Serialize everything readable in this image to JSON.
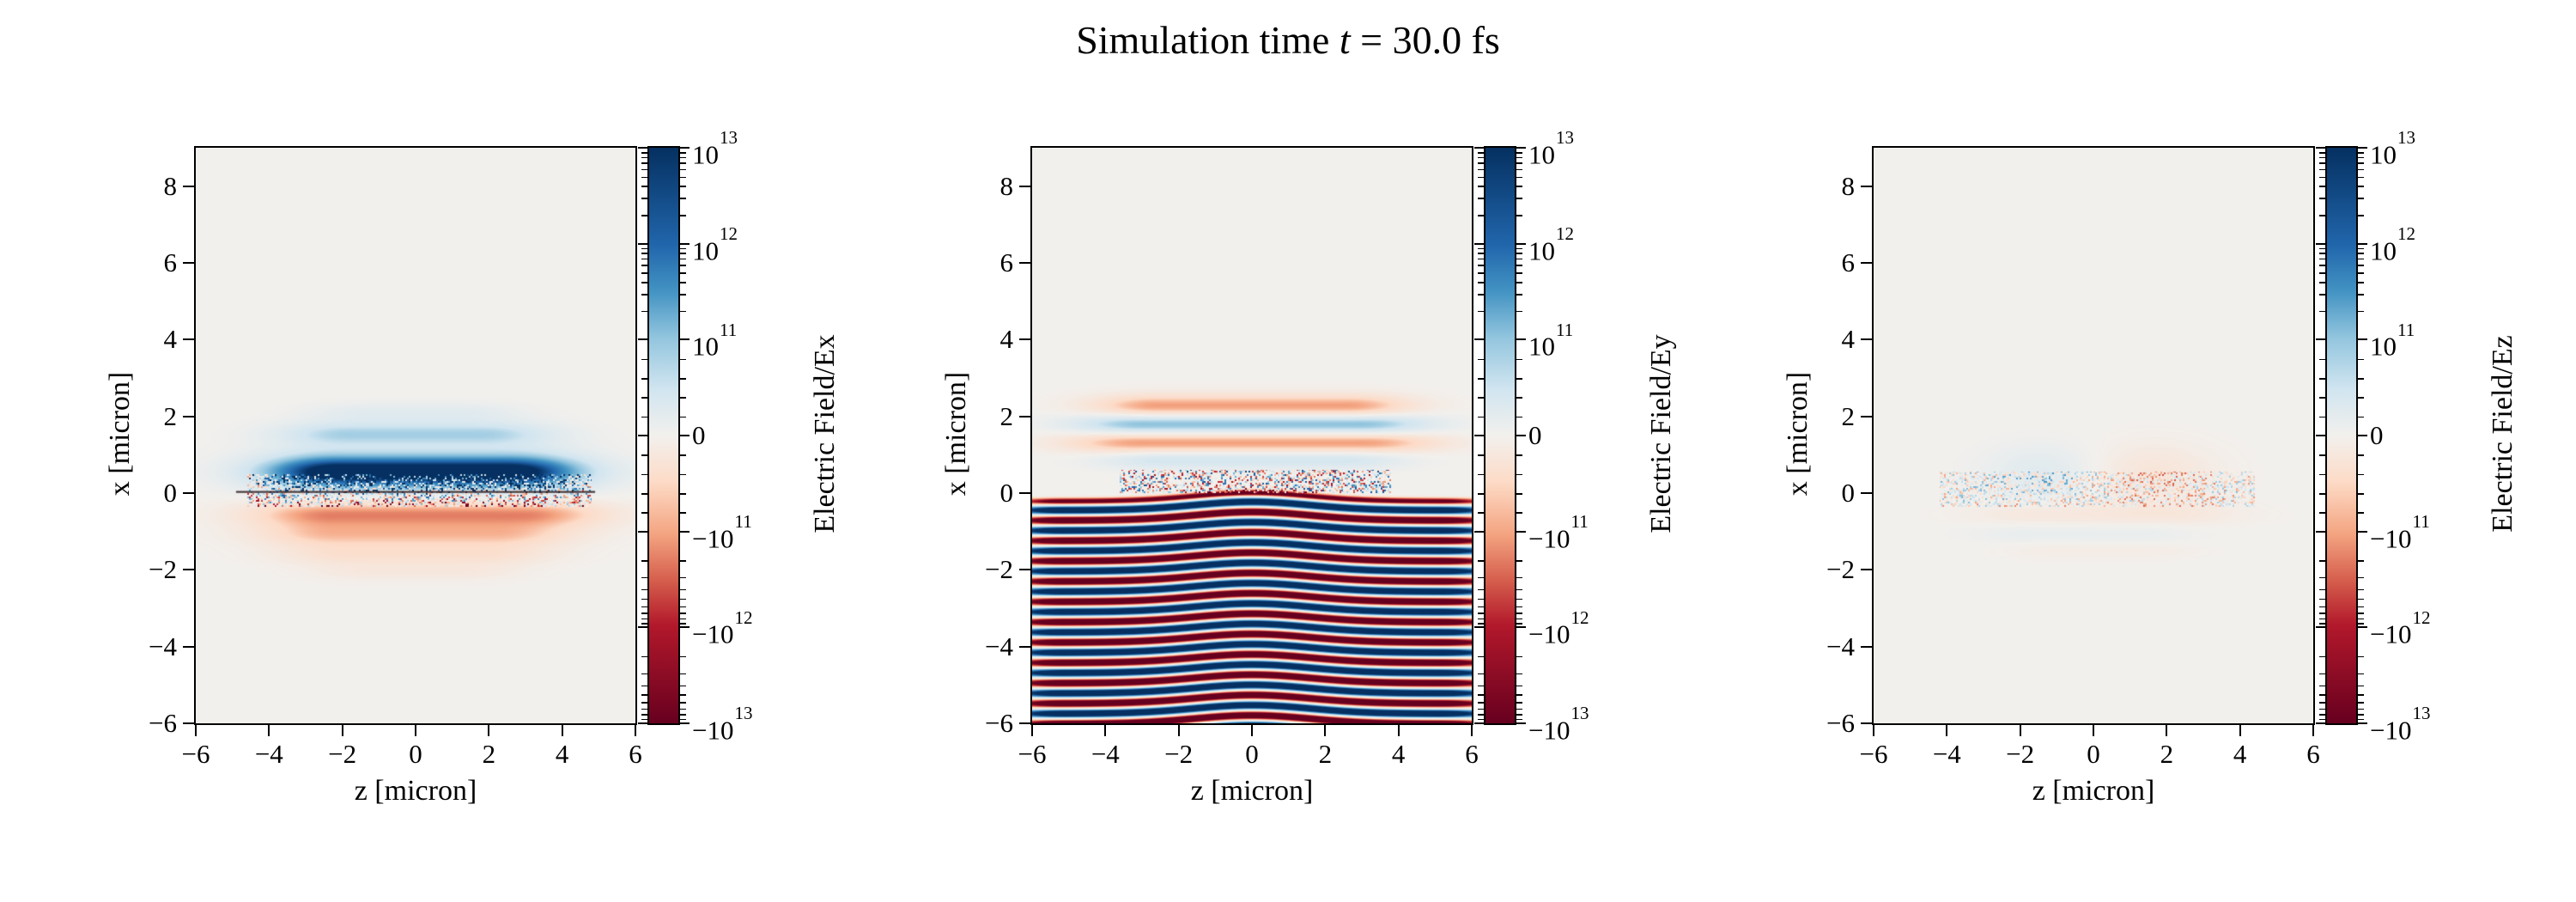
{
  "figure": {
    "title_prefix": "Simulation time ",
    "title_var": "t",
    "title_rest": " = 30.0 fs",
    "background": "#ffffff"
  },
  "colormap": {
    "name": "RdBu",
    "zero_color": "#f2f0ed",
    "stops": [
      {
        "t": -1.0,
        "color": "#67001f"
      },
      {
        "t": -0.83,
        "color": "#b2182b"
      },
      {
        "t": -0.67,
        "color": "#d6604d"
      },
      {
        "t": -0.5,
        "color": "#f4a582"
      },
      {
        "t": -0.33,
        "color": "#fddbc7"
      },
      {
        "t": 0.0,
        "color": "#f2f0ed"
      },
      {
        "t": 0.33,
        "color": "#d1e5f0"
      },
      {
        "t": 0.5,
        "color": "#92c5de"
      },
      {
        "t": 0.67,
        "color": "#4393c3"
      },
      {
        "t": 0.83,
        "color": "#2166ac"
      },
      {
        "t": 1.0,
        "color": "#053061"
      }
    ]
  },
  "colorbar": {
    "scale": "symlog",
    "tick_labels": [
      {
        "sign": "",
        "base": "10",
        "exp": "13"
      },
      {
        "sign": "",
        "base": "10",
        "exp": "12"
      },
      {
        "sign": "",
        "base": "10",
        "exp": "11"
      },
      {
        "label": "0"
      },
      {
        "sign": "−",
        "base": "10",
        "exp": "11"
      },
      {
        "sign": "−",
        "base": "10",
        "exp": "12"
      },
      {
        "sign": "−",
        "base": "10",
        "exp": "13"
      }
    ]
  },
  "chart_data": [
    {
      "type": "heatmap",
      "field": "Ex",
      "xlabel": "z [micron]",
      "ylabel": "x [micron]",
      "colorbar_label": "Electric Field/Ex",
      "xlim": [
        -6,
        6
      ],
      "ylim": [
        -6,
        9
      ],
      "xticks": [
        -6,
        -4,
        -2,
        0,
        2,
        4,
        6
      ],
      "yticks": [
        8,
        6,
        4,
        2,
        0,
        -2,
        -4,
        -6
      ],
      "clim": [
        -10000000000000.0,
        10000000000000.0
      ],
      "description": "Strong positive (blue) horizontal band just above the plasma surface x≈0 spanning z≈−4…4, weaker positive bands near x≈1.5 and 2.1, negative (orange-red) bands at x≈−0.5, −1.1, −1.6, −2, thin dark speckled interface line along x≈0.",
      "features": [
        {
          "type": "band",
          "x0": 0.55,
          "sx": 0.3,
          "z0": 0.2,
          "zflat": 2.2,
          "sz": 1.6,
          "amp": 0.95
        },
        {
          "type": "band",
          "x0": 0.6,
          "sx": 0.55,
          "z0": 0.2,
          "zflat": 2.6,
          "sz": 1.4,
          "amp": 0.22
        },
        {
          "type": "band",
          "x0": 1.55,
          "sx": 0.22,
          "z0": 0.0,
          "zflat": 1.8,
          "sz": 1.4,
          "amp": 0.4
        },
        {
          "type": "band",
          "x0": 2.1,
          "sx": 0.18,
          "z0": 0.0,
          "zflat": 1.2,
          "sz": 1.2,
          "amp": 0.16
        },
        {
          "type": "band",
          "x0": -0.55,
          "sx": 0.26,
          "z0": 0.3,
          "zflat": 2.6,
          "sz": 1.6,
          "amp": -0.6
        },
        {
          "type": "band",
          "x0": -1.1,
          "sx": 0.22,
          "z0": 0.0,
          "zflat": 2.2,
          "sz": 1.5,
          "amp": -0.38
        },
        {
          "type": "band",
          "x0": -1.6,
          "sx": 0.2,
          "z0": 0.0,
          "zflat": 1.8,
          "sz": 1.4,
          "amp": -0.24
        },
        {
          "type": "band",
          "x0": -2.05,
          "sx": 0.17,
          "z0": 0.0,
          "zflat": 1.2,
          "sz": 1.2,
          "amp": -0.12
        },
        {
          "type": "speckle",
          "x0": -0.35,
          "x1": 0.5,
          "z0": -4.6,
          "z1": 4.8,
          "amp": 0.85
        },
        {
          "type": "darkline",
          "x0": 0.03,
          "z0": -4.9,
          "z1": 4.9
        }
      ]
    },
    {
      "type": "heatmap",
      "field": "Ey",
      "xlabel": "z [micron]",
      "ylabel": "x [micron]",
      "colorbar_label": "Electric Field/Ey",
      "xlim": [
        -6,
        6
      ],
      "ylim": [
        -6,
        9
      ],
      "xticks": [
        -6,
        -4,
        -2,
        0,
        2,
        4,
        6
      ],
      "yticks": [
        8,
        6,
        4,
        2,
        0,
        -2,
        -4,
        -6
      ],
      "clim": [
        -10000000000000.0,
        10000000000000.0
      ],
      "description": "Saturated alternating red/blue horizontal laser wavefronts (period ≈0.53 micron) filling the region from x≈0 down to x=−6 across z≈−6…6, bowing slightly upward near z=0; weaker alternating bands at x≈0.9–2.3 above the surface and speckle along the interface.",
      "features": [
        {
          "type": "band",
          "x0": 2.25,
          "sx": 0.22,
          "z0": 0.0,
          "zflat": 2.6,
          "sz": 1.3,
          "amp": -0.55
        },
        {
          "type": "band",
          "x0": 1.8,
          "sx": 0.2,
          "z0": 0.0,
          "zflat": 2.9,
          "sz": 1.4,
          "amp": 0.6
        },
        {
          "type": "band",
          "x0": 1.32,
          "sx": 0.2,
          "z0": 0.0,
          "zflat": 3.0,
          "sz": 1.5,
          "amp": -0.55
        },
        {
          "type": "band",
          "x0": 0.88,
          "sx": 0.17,
          "z0": 0.0,
          "zflat": 2.4,
          "sz": 1.3,
          "amp": 0.32
        },
        {
          "type": "speckle",
          "x0": 0.0,
          "x1": 0.6,
          "z0": -3.6,
          "z1": 3.8,
          "amp": 0.9
        },
        {
          "type": "stripes",
          "xtop": -0.05,
          "period": 0.53,
          "amp": -1.35,
          "z0": 0.0,
          "zflat": 5.1,
          "sz": 1.1,
          "bow": 0.22,
          "bowsz": 1.6
        }
      ]
    },
    {
      "type": "heatmap",
      "field": "Ez",
      "xlabel": "z [micron]",
      "ylabel": "x [micron]",
      "colorbar_label": "Electric Field/Ez",
      "xlim": [
        -6,
        6
      ],
      "ylim": [
        -6,
        9
      ],
      "xticks": [
        -6,
        -4,
        -2,
        0,
        2,
        4,
        6
      ],
      "yticks": [
        8,
        6,
        4,
        2,
        0,
        -2,
        -4,
        -6
      ],
      "clim": [
        -10000000000000.0,
        10000000000000.0
      ],
      "description": "Mostly near-zero field: faint speckle noise along the plasma surface x≈0 (z≈−4…4), a faint positive (light blue) patch near z≈−1.4 and a faint negative (light orange) patch near z≈1.6, very weak bands just below the surface.",
      "features": [
        {
          "type": "speckle",
          "x0": -0.35,
          "x1": 0.55,
          "z0": -4.2,
          "z1": 4.4,
          "amp": 0.55
        },
        {
          "type": "blob",
          "x0": 0.55,
          "sx": 0.5,
          "z0": -1.4,
          "sz": 1.1,
          "amp": 0.18
        },
        {
          "type": "blob",
          "x0": 0.5,
          "sx": 0.55,
          "z0": 1.6,
          "sz": 1.2,
          "amp": -0.18
        },
        {
          "type": "band",
          "x0": -0.55,
          "sx": 0.2,
          "z0": 0.3,
          "zflat": 1.8,
          "sz": 1.4,
          "amp": -0.14
        },
        {
          "type": "band",
          "x0": -1.05,
          "sx": 0.17,
          "z0": -0.3,
          "zflat": 1.5,
          "sz": 1.2,
          "amp": 0.09
        },
        {
          "type": "band",
          "x0": -1.5,
          "sx": 0.15,
          "z0": 0.2,
          "zflat": 1.1,
          "sz": 1.1,
          "amp": -0.07
        }
      ]
    }
  ]
}
